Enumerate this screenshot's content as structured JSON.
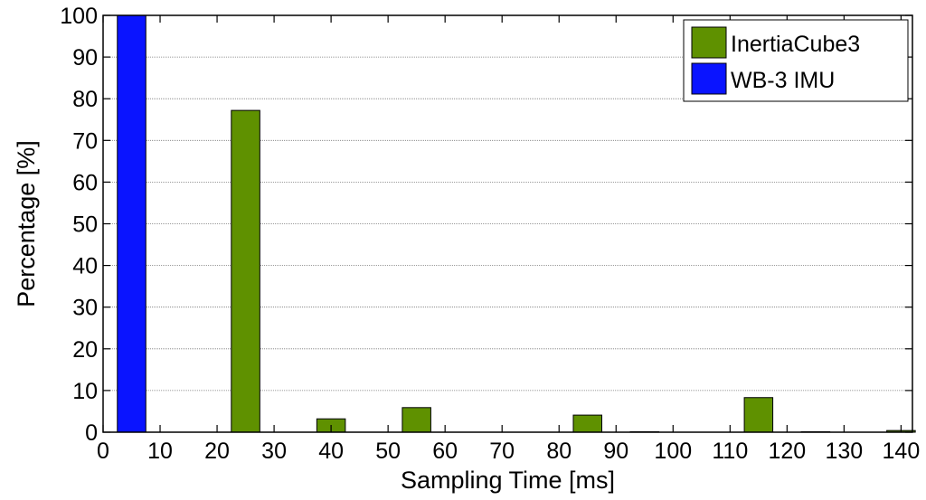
{
  "chart_data": {
    "type": "bar",
    "title": "",
    "xlabel": "Sampling Time [ms]",
    "ylabel": "Percentage [%]",
    "xlim": [
      0,
      142
    ],
    "ylim": [
      0,
      100
    ],
    "xticks": [
      0,
      10,
      20,
      30,
      40,
      50,
      60,
      70,
      80,
      90,
      100,
      110,
      120,
      130,
      140
    ],
    "yticks": [
      0,
      10,
      20,
      30,
      40,
      50,
      60,
      70,
      80,
      90,
      100
    ],
    "grid": "horizontal",
    "legend_position": "top-right",
    "bar_width": 5,
    "series": [
      {
        "name": "InertiaCube3",
        "color": "#5f9100",
        "x": [
          25,
          40,
          55,
          85,
          95,
          115,
          125,
          140
        ],
        "values": [
          77.2,
          3.2,
          5.9,
          4.1,
          0.1,
          8.3,
          0.1,
          0.4
        ]
      },
      {
        "name": "WB-3 IMU",
        "color": "#0a14ff",
        "x": [
          5
        ],
        "values": [
          100
        ]
      }
    ]
  }
}
